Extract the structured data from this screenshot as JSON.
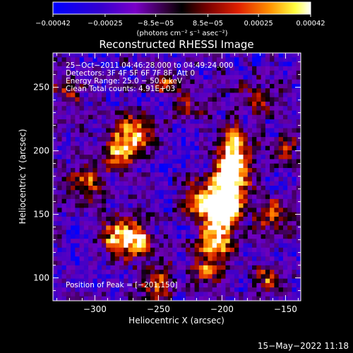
{
  "chart_data": {
    "type": "heatmap",
    "title": "Reconstructed RHESSI Image",
    "xlabel": "Heliocentric X (arcsec)",
    "ylabel": "Heliocentric Y (arcsec)",
    "xlim": [
      -333,
      -138
    ],
    "ylim": [
      82,
      277
    ],
    "x_ticks": [
      -300,
      -250,
      -200,
      -150
    ],
    "x_tick_labels": [
      "−300",
      "−250",
      "−200",
      "−150"
    ],
    "y_ticks": [
      100,
      150,
      200,
      250
    ],
    "y_tick_labels": [
      "100",
      "150",
      "200",
      "250"
    ],
    "colorbar": {
      "min": -0.00042,
      "max": 0.00042,
      "ticks": [
        -0.00042,
        -0.00025,
        -8.5e-05,
        8.5e-05,
        0.00025,
        0.00042
      ],
      "tick_labels": [
        "−0.00042",
        "−0.00025",
        "−8.5e−05",
        "8.5e−05",
        "0.00025",
        "0.00042"
      ],
      "unit_label": "(photons cm⁻² s⁻¹ asec⁻²)"
    },
    "annotations": [
      "25−Oct−2011 04:46:28.000 to 04:49:24.000",
      "Detectors: 3F 4F 5F 6F 7F 8F, Att 0",
      "Energy Range: 25.0 − 50.0 keV",
      "Clean     Total counts: 4.91E+03"
    ],
    "peak_label": "Position of Peak = [−201,150]",
    "peak": [
      -201,
      150
    ],
    "sources": [
      {
        "x": -201,
        "y": 150,
        "intensity": 1.0,
        "radius": 10
      },
      {
        "x": -196,
        "y": 165,
        "intensity": 0.85,
        "radius": 11
      },
      {
        "x": -192,
        "y": 185,
        "intensity": 0.8,
        "radius": 10
      },
      {
        "x": -190,
        "y": 205,
        "intensity": 0.7,
        "radius": 9
      },
      {
        "x": -205,
        "y": 130,
        "intensity": 0.6,
        "radius": 9
      },
      {
        "x": -210,
        "y": 110,
        "intensity": 0.55,
        "radius": 10
      },
      {
        "x": -160,
        "y": 150,
        "intensity": 0.55,
        "radius": 9
      },
      {
        "x": -165,
        "y": 100,
        "intensity": 0.45,
        "radius": 9
      },
      {
        "x": -270,
        "y": 215,
        "intensity": 0.65,
        "radius": 10
      },
      {
        "x": -280,
        "y": 200,
        "intensity": 0.55,
        "radius": 9
      },
      {
        "x": -280,
        "y": 135,
        "intensity": 0.7,
        "radius": 11
      },
      {
        "x": -265,
        "y": 125,
        "intensity": 0.6,
        "radius": 9
      },
      {
        "x": -305,
        "y": 175,
        "intensity": 0.45,
        "radius": 10
      },
      {
        "x": -250,
        "y": 95,
        "intensity": 0.55,
        "radius": 9
      },
      {
        "x": -220,
        "y": 160,
        "intensity": 0.5,
        "radius": 9
      },
      {
        "x": -230,
        "y": 235,
        "intensity": 0.4,
        "radius": 9
      },
      {
        "x": -320,
        "y": 250,
        "intensity": 0.4,
        "radius": 10
      },
      {
        "x": -175,
        "y": 240,
        "intensity": 0.4,
        "radius": 9
      },
      {
        "x": -150,
        "y": 200,
        "intensity": 0.4,
        "radius": 8
      },
      {
        "x": -245,
        "y": 255,
        "intensity": 0.35,
        "radius": 8
      }
    ]
  },
  "footer": {
    "timestamp": "15−May−2022 11:18"
  }
}
